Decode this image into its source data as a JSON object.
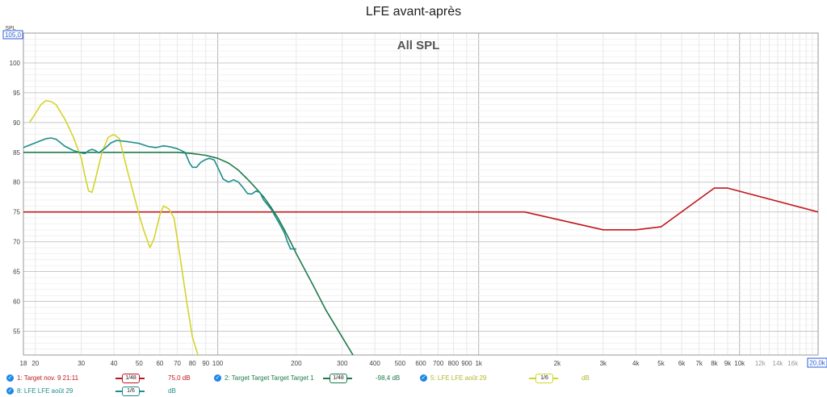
{
  "title": "LFE avant-après",
  "chart_data": {
    "type": "line",
    "title": "LFE avant-après",
    "watermark": "All SPL",
    "ylabel": "SPL",
    "xlabel": "",
    "x_scale": "log",
    "xlim": [
      18,
      20000
    ],
    "ylim": [
      51,
      105
    ],
    "y_top_label": "105,0",
    "x_right_label": "20,0k",
    "y_ticks": [
      55,
      60,
      65,
      70,
      75,
      80,
      85,
      90,
      95,
      100
    ],
    "x_ticks": [
      {
        "v": 18,
        "l": "18"
      },
      {
        "v": 20,
        "l": "20"
      },
      {
        "v": 30,
        "l": "30"
      },
      {
        "v": 40,
        "l": "40"
      },
      {
        "v": 50,
        "l": "50"
      },
      {
        "v": 60,
        "l": "60"
      },
      {
        "v": 70,
        "l": "70"
      },
      {
        "v": 80,
        "l": "80"
      },
      {
        "v": 90,
        "l": "90"
      },
      {
        "v": 100,
        "l": "100"
      },
      {
        "v": 200,
        "l": "200"
      },
      {
        "v": 300,
        "l": "300"
      },
      {
        "v": 400,
        "l": "400"
      },
      {
        "v": 500,
        "l": "500"
      },
      {
        "v": 600,
        "l": "600"
      },
      {
        "v": 700,
        "l": "700"
      },
      {
        "v": 800,
        "l": "800"
      },
      {
        "v": 900,
        "l": "900"
      },
      {
        "v": 1000,
        "l": "1k"
      },
      {
        "v": 2000,
        "l": "2k"
      },
      {
        "v": 3000,
        "l": "3k"
      },
      {
        "v": 4000,
        "l": "4k"
      },
      {
        "v": 5000,
        "l": "5k"
      },
      {
        "v": 6000,
        "l": "6k"
      },
      {
        "v": 7000,
        "l": "7k"
      },
      {
        "v": 8000,
        "l": "8k"
      },
      {
        "v": 9000,
        "l": "9k"
      },
      {
        "v": 10000,
        "l": "10k"
      },
      {
        "v": 12000,
        "l": "12k"
      },
      {
        "v": 14000,
        "l": "14k"
      },
      {
        "v": 16000,
        "l": "16k"
      }
    ],
    "grid": true,
    "series": [
      {
        "name": "1: Target nov. 9 21:11",
        "color": "#c0161b",
        "smoothing": "1/48",
        "value_label": "75,0 dB",
        "points": [
          [
            18,
            75
          ],
          [
            1500,
            75
          ],
          [
            3000,
            72
          ],
          [
            4000,
            72
          ],
          [
            5000,
            72.5
          ],
          [
            8000,
            79
          ],
          [
            9000,
            79
          ],
          [
            20000,
            75
          ]
        ]
      },
      {
        "name": "2: Target Target Target Target 1",
        "color": "#1e7a4a",
        "smoothing": "1/48",
        "value_label": "-98,4 dB",
        "points": [
          [
            18,
            85
          ],
          [
            60,
            85
          ],
          [
            70,
            85
          ],
          [
            80,
            84.8
          ],
          [
            90,
            84.5
          ],
          [
            100,
            84
          ],
          [
            110,
            83.2
          ],
          [
            120,
            82
          ],
          [
            130,
            80.5
          ],
          [
            140,
            79
          ],
          [
            150,
            77.5
          ],
          [
            160,
            75.8
          ],
          [
            170,
            74
          ],
          [
            180,
            72
          ],
          [
            190,
            70
          ],
          [
            200,
            68
          ],
          [
            230,
            63
          ],
          [
            260,
            58.5
          ],
          [
            300,
            54
          ],
          [
            330,
            51
          ]
        ]
      },
      {
        "name": "5: LFE LFE août 29",
        "color": "#d4d42a",
        "smoothing": "1/6",
        "value_label": "dB",
        "points": [
          [
            19,
            90
          ],
          [
            20,
            91.5
          ],
          [
            21,
            93
          ],
          [
            22,
            93.7
          ],
          [
            23,
            93.5
          ],
          [
            24,
            93
          ],
          [
            26,
            90.5
          ],
          [
            28,
            87.5
          ],
          [
            30,
            84
          ],
          [
            31,
            81
          ],
          [
            32,
            78.5
          ],
          [
            33,
            78.3
          ],
          [
            34,
            80.5
          ],
          [
            36,
            85
          ],
          [
            38,
            87.5
          ],
          [
            40,
            88
          ],
          [
            42,
            87.3
          ],
          [
            45,
            82
          ],
          [
            50,
            74.5
          ],
          [
            52,
            72
          ],
          [
            54,
            70
          ],
          [
            55,
            69
          ],
          [
            57,
            70.5
          ],
          [
            60,
            74.5
          ],
          [
            62,
            76
          ],
          [
            65,
            75.5
          ],
          [
            68,
            74
          ],
          [
            72,
            67
          ],
          [
            76,
            60
          ],
          [
            80,
            54
          ],
          [
            84,
            51
          ]
        ]
      },
      {
        "name": "8: LFE LFE août 29",
        "color": "#1e8c8c",
        "smoothing": "1/6",
        "value_label": "dB",
        "points": [
          [
            18,
            85.8
          ],
          [
            20,
            86.6
          ],
          [
            22,
            87.3
          ],
          [
            23,
            87.4
          ],
          [
            24,
            87.2
          ],
          [
            26,
            86
          ],
          [
            28,
            85.3
          ],
          [
            30,
            84.9
          ],
          [
            31,
            84.8
          ],
          [
            32,
            85.3
          ],
          [
            33,
            85.5
          ],
          [
            34,
            85.3
          ],
          [
            35,
            84.9
          ],
          [
            37,
            85.7
          ],
          [
            39,
            86.6
          ],
          [
            41,
            87
          ],
          [
            45,
            86.8
          ],
          [
            50,
            86.5
          ],
          [
            54,
            86
          ],
          [
            58,
            85.8
          ],
          [
            62,
            86.1
          ],
          [
            66,
            85.9
          ],
          [
            70,
            85.6
          ],
          [
            75,
            85
          ],
          [
            78,
            83.2
          ],
          [
            80,
            82.5
          ],
          [
            83,
            82.5
          ],
          [
            86,
            83.3
          ],
          [
            90,
            83.8
          ],
          [
            93,
            84
          ],
          [
            97,
            83.7
          ],
          [
            100,
            82.5
          ],
          [
            105,
            80.5
          ],
          [
            110,
            80
          ],
          [
            115,
            80.4
          ],
          [
            120,
            80
          ],
          [
            125,
            79.1
          ],
          [
            130,
            78.1
          ],
          [
            135,
            78
          ],
          [
            140,
            78.5
          ],
          [
            145,
            78.3
          ],
          [
            150,
            77
          ],
          [
            160,
            75.5
          ],
          [
            170,
            73.5
          ],
          [
            180,
            71.5
          ],
          [
            185,
            70
          ],
          [
            190,
            68.8
          ],
          [
            200,
            68.8
          ]
        ]
      }
    ]
  }
}
